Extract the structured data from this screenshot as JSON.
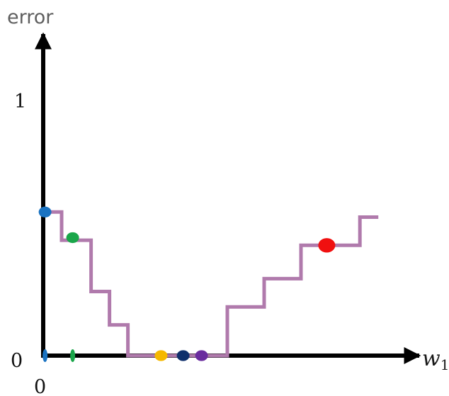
{
  "chart_data": {
    "type": "line",
    "ylabel": "error",
    "xlabel_main": "w",
    "xlabel_sub": "1",
    "y_tick_labels": [
      "0",
      "1"
    ],
    "x_tick_labels": [
      "0"
    ],
    "xlim": [
      0,
      10
    ],
    "ylim": [
      0,
      1.2
    ],
    "grid": false,
    "series": [
      {
        "color": "#b07aac",
        "line_style": "step",
        "x": [
          0,
          0.5,
          0.5,
          1.3,
          1.3,
          1.8,
          1.8,
          2.3,
          2.3,
          3.3,
          3.3,
          5.0,
          5.0,
          6.0,
          6.0,
          7.0,
          7.0,
          8.0,
          8.0,
          8.6,
          8.6,
          9.1
        ],
        "y": [
          0.56,
          0.56,
          0.45,
          0.45,
          0.25,
          0.25,
          0.12,
          0.12,
          0.0,
          0.0,
          0.0,
          0.0,
          0.19,
          0.19,
          0.3,
          0.3,
          0.43,
          0.43,
          0.43,
          0.43,
          0.54,
          0.54
        ]
      }
    ],
    "points": [
      {
        "x": 0.05,
        "y": 0.56,
        "color": "#1a73c2"
      },
      {
        "x": 0.8,
        "y": 0.46,
        "color": "#1aa64a"
      },
      {
        "x": 3.2,
        "y": 0.0,
        "color": "#f5b800"
      },
      {
        "x": 3.8,
        "y": 0.0,
        "color": "#0f2f6b"
      },
      {
        "x": 4.3,
        "y": 0.0,
        "color": "#6a2c9e"
      },
      {
        "x": 7.7,
        "y": 0.43,
        "color": "#f01010"
      }
    ],
    "axis_ticks": [
      {
        "x": 0.05,
        "color": "#1a73c2"
      },
      {
        "x": 0.8,
        "color": "#1aa64a"
      }
    ]
  }
}
